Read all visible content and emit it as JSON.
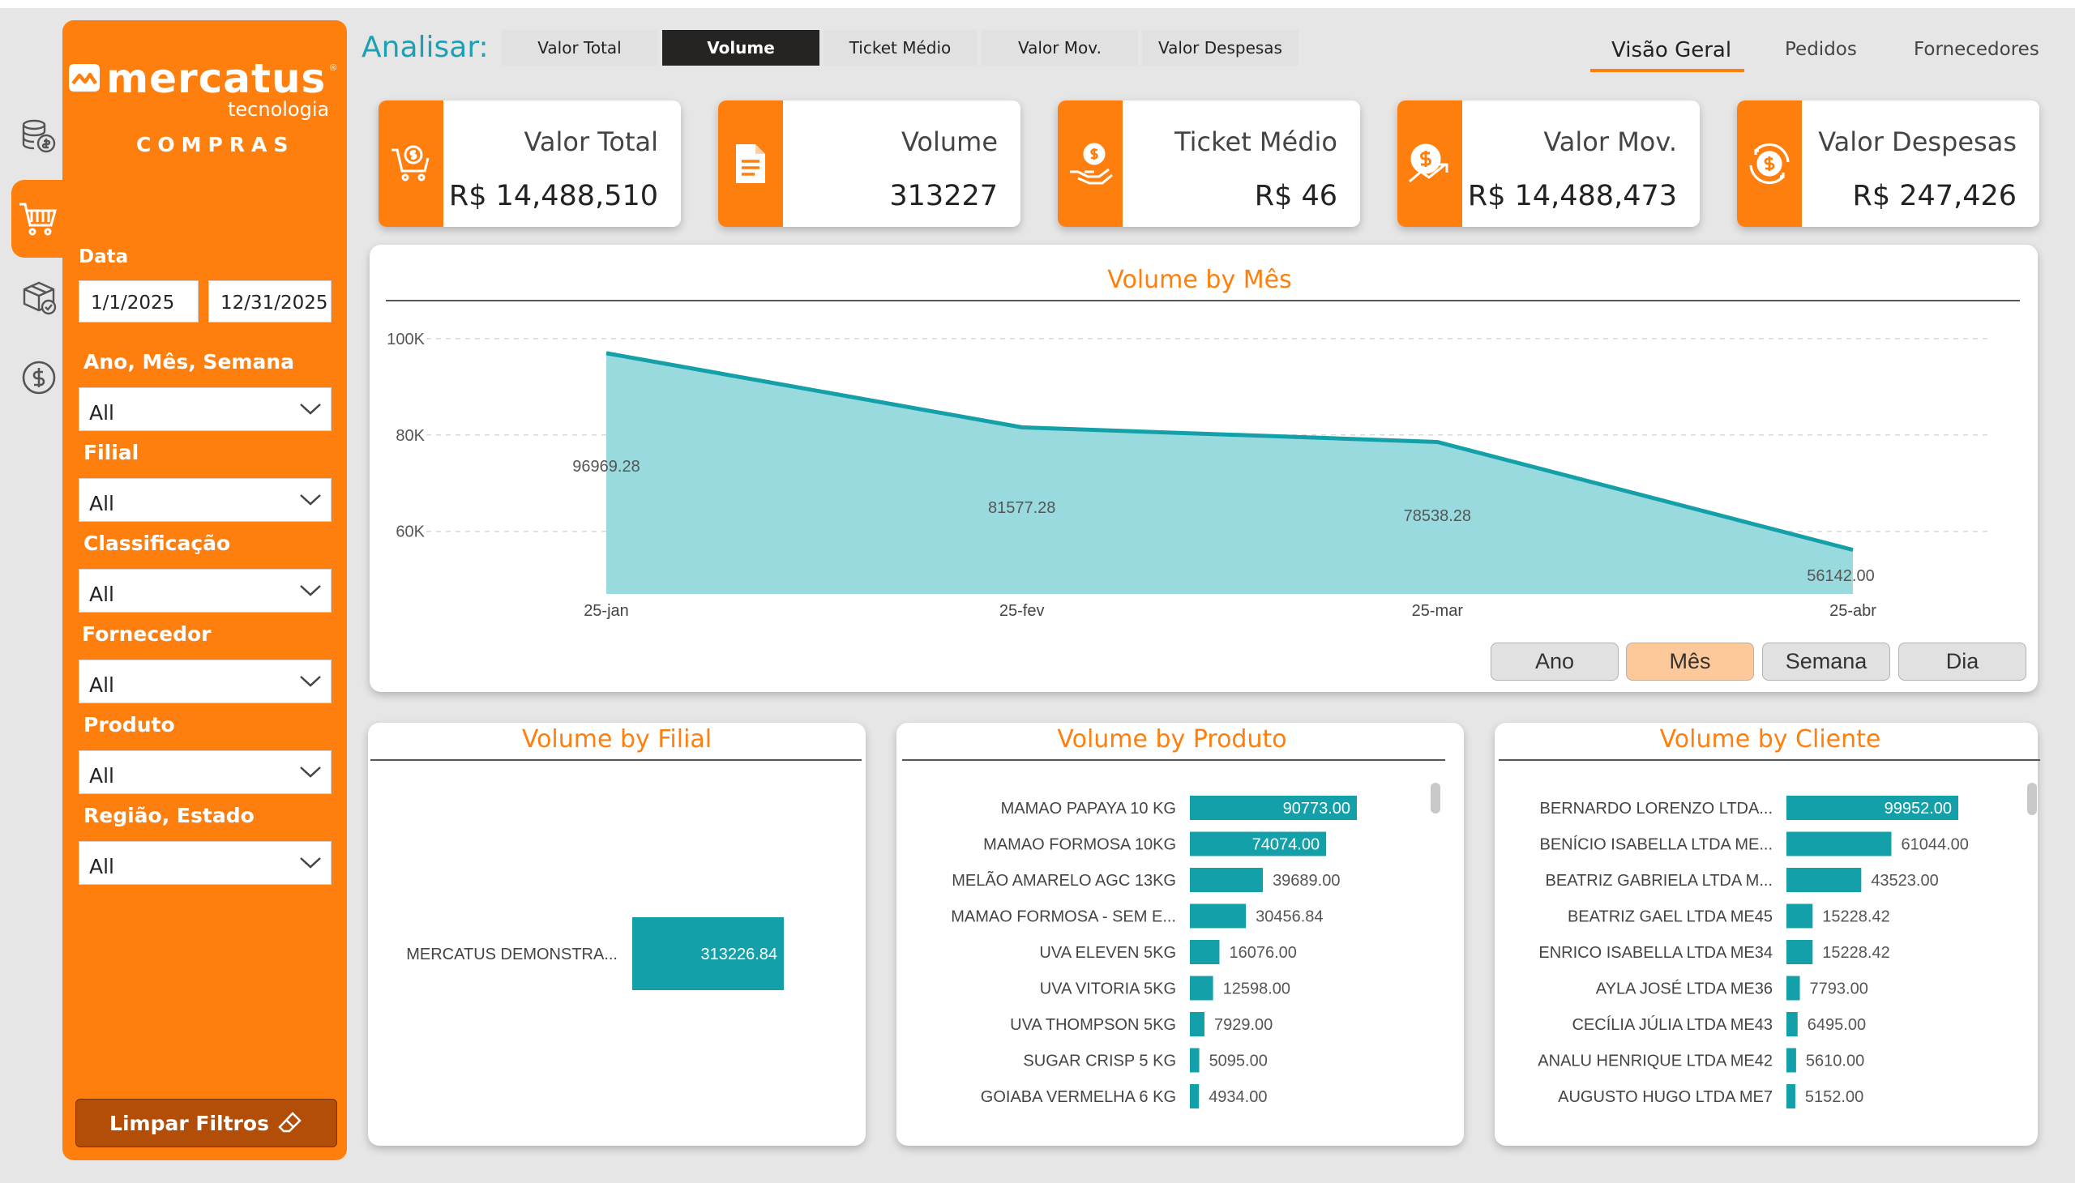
{
  "sidebar": {
    "brand": "mercatus",
    "brand_registered": "®",
    "brand_sub": "tecnologia",
    "module": "COMPRAS",
    "date_label": "Data",
    "date_start": "1/1/2025",
    "date_end": "12/31/2025",
    "filters": [
      {
        "label": "Ano, Mês, Semana",
        "value": "All"
      },
      {
        "label": "Filial",
        "value": "All"
      },
      {
        "label": "Classificação",
        "value": "All"
      },
      {
        "label": "Fornecedor",
        "value": "All"
      },
      {
        "label": "Produto",
        "value": "All"
      },
      {
        "label": "Região, Estado",
        "value": "All"
      }
    ],
    "clear_label": "Limpar Filtros"
  },
  "rail_icons": [
    "coins-icon",
    "cart-icon",
    "box-icon",
    "dollar-circle-icon"
  ],
  "header": {
    "analisar_label": "Analisar:",
    "measure_tabs": [
      "Valor Total",
      "Volume",
      "Ticket Médio",
      "Valor Mov.",
      "Valor Despesas"
    ],
    "active_measure": "Volume",
    "page_tabs": [
      "Visão Geral",
      "Pedidos",
      "Fornecedores"
    ],
    "active_page": "Visão Geral"
  },
  "kpis": [
    {
      "title": "Valor Total",
      "value": "R$ 14,488,510",
      "icon": "cart-dollar-icon"
    },
    {
      "title": "Volume",
      "value": "313227",
      "icon": "document-icon"
    },
    {
      "title": "Ticket Médio",
      "value": "R$ 46",
      "icon": "hand-coin-icon"
    },
    {
      "title": "Valor Mov.",
      "value": "R$ 14,488,473",
      "icon": "coin-growth-icon"
    },
    {
      "title": "Valor Despesas",
      "value": "R$ 247,426",
      "icon": "coin-cycle-icon"
    }
  ],
  "colors": {
    "accent": "#ff7f0e",
    "teal": "#1ba0b4",
    "area_fill": "#99dadf",
    "bar": "#14a0a8"
  },
  "chart_data": [
    {
      "type": "area",
      "title": "Volume by Mês",
      "categories": [
        "25-jan",
        "25-fev",
        "25-mar",
        "25-abr"
      ],
      "values": [
        96969.28,
        81577.28,
        78538.28,
        56142.0
      ],
      "data_labels": [
        "96969.28",
        "81577.28",
        "78538.28",
        "56142.00"
      ],
      "y_ticks": [
        "60K",
        "80K",
        "100K"
      ],
      "y_tick_values": [
        60000,
        80000,
        100000
      ],
      "ylim": [
        47000,
        103000
      ],
      "grid": true,
      "granularity_buttons": [
        "Ano",
        "Mês",
        "Semana",
        "Dia"
      ],
      "active_granularity": "Mês"
    },
    {
      "type": "bar",
      "title": "Volume by Filial",
      "categories": [
        "MERCATUS DEMONSTRA..."
      ],
      "values": [
        313226.84
      ],
      "labels": [
        "313226.84"
      ]
    },
    {
      "type": "bar",
      "title": "Volume by Produto",
      "categories": [
        "MAMAO PAPAYA 10 KG",
        "MAMAO FORMOSA 10KG",
        "MELÃO AMARELO AGC 13KG",
        "MAMAO FORMOSA - SEM E...",
        "UVA ELEVEN 5KG",
        "UVA VITORIA 5KG",
        "UVA THOMPSON 5KG",
        "SUGAR CRISP 5 KG",
        "GOIABA VERMELHA 6 KG"
      ],
      "values": [
        90773.0,
        74074.0,
        39689.0,
        30456.84,
        16076.0,
        12598.0,
        7929.0,
        5095.0,
        4934.0
      ],
      "labels": [
        "90773.00",
        "74074.00",
        "39689.00",
        "30456.84",
        "16076.00",
        "12598.00",
        "7929.00",
        "5095.00",
        "4934.00"
      ]
    },
    {
      "type": "bar",
      "title": "Volume by Cliente",
      "categories": [
        "BERNARDO LORENZO LTDA...",
        "BENÍCIO ISABELLA LTDA ME...",
        "BEATRIZ GABRIELA LTDA M...",
        "BEATRIZ GAEL LTDA ME45",
        "ENRICO ISABELLA LTDA ME34",
        "AYLA JOSÉ LTDA ME36",
        "CECÍLIA JÚLIA LTDA ME43",
        "ANALU HENRIQUE LTDA ME42",
        "AUGUSTO HUGO LTDA ME7"
      ],
      "values": [
        99952.0,
        61044.0,
        43523.0,
        15228.42,
        15228.42,
        7793.0,
        6495.0,
        5610.0,
        5152.0
      ],
      "labels": [
        "99952.00",
        "61044.00",
        "43523.00",
        "15228.42",
        "15228.42",
        "7793.00",
        "6495.00",
        "5610.00",
        "5152.00"
      ]
    }
  ]
}
